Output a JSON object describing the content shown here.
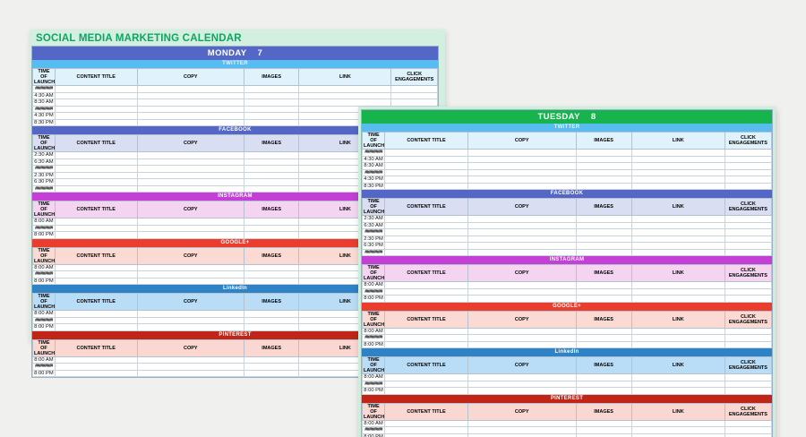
{
  "calendar_title": "SOCIAL MEDIA MARKETING CALENDAR",
  "columns": [
    "TIME OF LAUNCH",
    "CONTENT TITLE",
    "COPY",
    "IMAGES",
    "LINK",
    "CLICK ENGAGEMENTS"
  ],
  "days": [
    {
      "id": "monday",
      "label": "MONDAY",
      "date": "7",
      "band_color": "#5467c6",
      "show_title": true
    },
    {
      "id": "tuesday",
      "label": "TUESDAY",
      "date": "8",
      "band_color": "#17b34d",
      "show_title": false
    }
  ],
  "platforms": [
    {
      "id": "twitter",
      "name": "TWITTER",
      "band_color": "#57bdf1",
      "band_text_color": "#e3f4fd",
      "header_bg": "#e0f3fd",
      "times": [
        "########",
        "4:30 AM",
        "8:30 AM",
        "########",
        "4:30 PM",
        "8:30 PM"
      ]
    },
    {
      "id": "facebook",
      "name": "FACEBOOK",
      "band_color": "#5467c6",
      "band_text_color": "#ffffff",
      "header_bg": "#dadef2",
      "times": [
        "2:30 AM",
        "6:30 AM",
        "########",
        "2:30 PM",
        "6:30 PM",
        "########"
      ]
    },
    {
      "id": "instagram",
      "name": "INSTAGRAM",
      "band_color": "#c33fd6",
      "band_text_color": "#ffffff",
      "header_bg": "#f5d4f2",
      "times": [
        "8:00 AM",
        "########",
        "8:00 PM"
      ]
    },
    {
      "id": "googleplus",
      "name": "GOOGLE+",
      "band_color": "#ea3d2d",
      "band_text_color": "#ffffff",
      "header_bg": "#fbdad4",
      "times": [
        "8:00 AM",
        "########",
        "8:00 PM"
      ]
    },
    {
      "id": "linkedin",
      "name": "LinkedIn",
      "band_color": "#2e82c6",
      "band_text_color": "#ffffff",
      "header_bg": "#b9dcf7",
      "times": [
        "8:00 AM",
        "########",
        "8:00 PM"
      ]
    },
    {
      "id": "pinterest",
      "name": "PINTEREST",
      "band_color": "#c12517",
      "band_text_color": "#ffffff",
      "header_bg": "#fbd7d1",
      "times": [
        "8:00 AM",
        "########",
        "8:00 PM"
      ]
    }
  ],
  "colors": {
    "page_background": "#f0f0ee",
    "monday_card_background": "#d3efe0",
    "tuesday_card_border": "#cdeedd",
    "title_text": "#0fa463",
    "grid_line": "#c9d3db"
  }
}
